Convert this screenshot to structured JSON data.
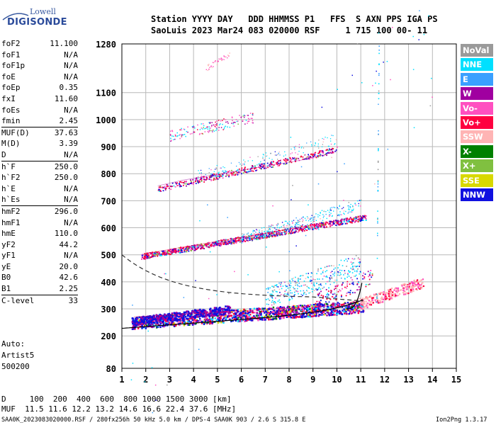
{
  "logo": {
    "line1": "Lowell",
    "line2": "DIGISONDE"
  },
  "header": {
    "row1": "Station YYYY DAY   DDD HHMMSS P1   FFS  S AXN PPS IGA PS",
    "row2": "SaoLuis 2023 Mar24 083 020000 RSF     1 715 100 00- 11"
  },
  "params": [
    {
      "label": "foF2",
      "value": "11.100"
    },
    {
      "label": "foF1",
      "value": "N/A"
    },
    {
      "label": "foF1p",
      "value": "N/A"
    },
    {
      "label": "foE",
      "value": "N/A"
    },
    {
      "label": "foEp",
      "value": "0.35"
    },
    {
      "label": "fxI",
      "value": "11.60"
    },
    {
      "label": "foEs",
      "value": "N/A"
    },
    {
      "label": "fmin",
      "value": "2.45"
    },
    {
      "label": "MUF(D)",
      "value": "37.63"
    },
    {
      "label": "M(D)",
      "value": "3.39"
    },
    {
      "label": "D",
      "value": "N/A"
    },
    {
      "label": "h`F",
      "value": "250.0"
    },
    {
      "label": "h`F2",
      "value": "250.0"
    },
    {
      "label": "h`E",
      "value": "N/A"
    },
    {
      "label": "h`Es",
      "value": "N/A"
    },
    {
      "label": "hmF2",
      "value": "296.0"
    },
    {
      "label": "hmF1",
      "value": "N/A"
    },
    {
      "label": "hmE",
      "value": "110.0"
    },
    {
      "label": "yF2",
      "value": "44.2"
    },
    {
      "label": "yF1",
      "value": "N/A"
    },
    {
      "label": "yE",
      "value": "20.0"
    },
    {
      "label": "B0",
      "value": "42.6"
    },
    {
      "label": "B1",
      "value": "2.25"
    },
    {
      "label": "C-level",
      "value": "33"
    }
  ],
  "aux": {
    "line1": "Auto:",
    "line2": "Artist5",
    "line3": "500200"
  },
  "legend": [
    {
      "label": "NoVal",
      "color": "#9a9a9a"
    },
    {
      "label": "NNE",
      "color": "#00e0ff"
    },
    {
      "label": "E",
      "color": "#3aa0ff"
    },
    {
      "label": "W",
      "color": "#a000a0"
    },
    {
      "label": "Vo-",
      "color": "#ff50c0"
    },
    {
      "label": "Vo+",
      "color": "#ff0040"
    },
    {
      "label": "SSW",
      "color": "#ffb4b4"
    },
    {
      "label": "X-",
      "color": "#008000"
    },
    {
      "label": "X+",
      "color": "#80c040"
    },
    {
      "label": "SSE",
      "color": "#d8d800"
    },
    {
      "label": "NNW",
      "color": "#1010e0"
    }
  ],
  "footer": {
    "line1": "D     100  200  400  600  800 1000 1500 3000 [km]",
    "line2": "MUF  11.5 11.6 12.2 13.2 14.6 16.6 22.4 37.6 [MHz]",
    "file": "SAA0K_2023083020000.RSF / 280fx256h 50 kHz 5.0 km / DPS-4 SAA0K 903 / 2.6 S 315.8 E",
    "version": "Ion2Png 1.3.17"
  },
  "chart_data": {
    "type": "scatter",
    "xlim": [
      1,
      15
    ],
    "ylim": [
      80,
      1280
    ],
    "x_ticks": [
      1,
      2,
      3,
      4,
      5,
      6,
      7,
      8,
      9,
      10,
      11,
      12,
      13,
      14,
      15
    ],
    "y_ticks": [
      80,
      200,
      300,
      400,
      500,
      600,
      700,
      800,
      900,
      1000,
      1100,
      1280
    ],
    "grid": true,
    "traces": [
      {
        "name": "F2 trace",
        "color": "#ff0040",
        "x": [
          1.5,
          2.5,
          3.5,
          4.5,
          5.5,
          6.5,
          7.5,
          8.5,
          9.5,
          10.5,
          11.0
        ],
        "y": [
          270,
          275,
          280,
          285,
          290,
          295,
          300,
          305,
          310,
          320,
          340
        ]
      },
      {
        "name": "2F trace",
        "color": "#ff0040",
        "x": [
          2,
          3,
          4,
          5,
          6,
          7,
          8,
          9,
          10,
          11
        ],
        "y": [
          505,
          520,
          535,
          550,
          565,
          580,
          595,
          610,
          625,
          640
        ]
      },
      {
        "name": "3F trace",
        "color": "#a000a0",
        "x": [
          2.5,
          3.5,
          4.5,
          5.5,
          6.5,
          7.5,
          8.5,
          9.5,
          10
        ],
        "y": [
          755,
          775,
          790,
          805,
          820,
          835,
          850,
          870,
          885
        ]
      }
    ]
  }
}
